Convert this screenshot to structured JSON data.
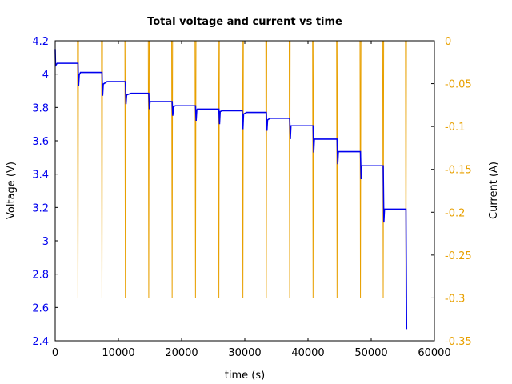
{
  "chart_data": {
    "type": "line",
    "title": "Total voltage and current vs time",
    "xlabel": "time (s)",
    "ylabel_left": "Voltage (V)",
    "ylabel_right": "Current (A)",
    "xlim": [
      0,
      60000
    ],
    "ylim_left": [
      2.4,
      4.2
    ],
    "ylim_right": [
      -0.35,
      0
    ],
    "x_ticks": [
      0,
      10000,
      20000,
      30000,
      40000,
      50000,
      60000
    ],
    "x_tick_labels": [
      "0",
      "10000",
      "20000",
      "30000",
      "40000",
      "50000",
      "60000"
    ],
    "y_left_ticks": [
      2.4,
      2.6,
      2.8,
      3.0,
      3.2,
      3.4,
      3.6,
      3.8,
      4.0,
      4.2
    ],
    "y_left_tick_labels": [
      "2.4",
      "2.6",
      "2.8",
      "3",
      "3.2",
      "3.4",
      "3.6",
      "3.8",
      "4",
      "4.2"
    ],
    "y_right_ticks": [
      0,
      -0.05,
      -0.1,
      -0.15,
      -0.2,
      -0.25,
      -0.3,
      -0.35
    ],
    "y_right_tick_labels": [
      "0",
      "-0.05",
      "-0.1",
      "-0.15",
      "-0.2",
      "-0.25",
      "-0.3",
      "-0.35"
    ],
    "grid": false,
    "colors": {
      "voltage": "#0000ee",
      "current": "#e8a000",
      "left_axis_text": "#0000ee",
      "right_axis_text": "#e8a000"
    },
    "series": [
      {
        "axis": "left",
        "x": [
          0,
          50,
          300,
          3600,
          3700,
          3800,
          4000,
          7400,
          7500,
          7600,
          8200,
          11100,
          11200,
          11300,
          12000,
          14800,
          14900,
          15000,
          15600,
          18500,
          18600,
          18700,
          19000,
          22200,
          22300,
          22400,
          22500,
          25900,
          26000,
          26100,
          26400,
          29600,
          29700,
          29800,
          30300,
          33400,
          33500,
          33600,
          34000,
          37100,
          37200,
          37300,
          40800,
          40900,
          41000,
          44600,
          44700,
          44800,
          48300,
          48400,
          48500,
          51900,
          52000,
          52100,
          55500,
          55600
        ],
        "y": [
          4.15,
          4.05,
          4.065,
          4.065,
          3.93,
          3.995,
          4.01,
          4.01,
          3.87,
          3.94,
          3.955,
          3.955,
          3.82,
          3.875,
          3.885,
          3.885,
          3.79,
          3.835,
          3.835,
          3.835,
          3.75,
          3.805,
          3.81,
          3.81,
          3.72,
          3.785,
          3.79,
          3.79,
          3.7,
          3.775,
          3.78,
          3.78,
          3.67,
          3.76,
          3.77,
          3.77,
          3.66,
          3.725,
          3.735,
          3.735,
          3.61,
          3.69,
          3.69,
          3.53,
          3.61,
          3.61,
          3.46,
          3.535,
          3.535,
          3.37,
          3.45,
          3.45,
          3.11,
          3.19,
          3.19,
          2.47
        ]
      },
      {
        "axis": "right",
        "pulses_x": [
          3600,
          7400,
          11100,
          14800,
          18500,
          22200,
          25900,
          29700,
          33400,
          37100,
          40800,
          44600,
          48300,
          51900,
          55500
        ],
        "pulse_current": -0.3
      }
    ]
  }
}
